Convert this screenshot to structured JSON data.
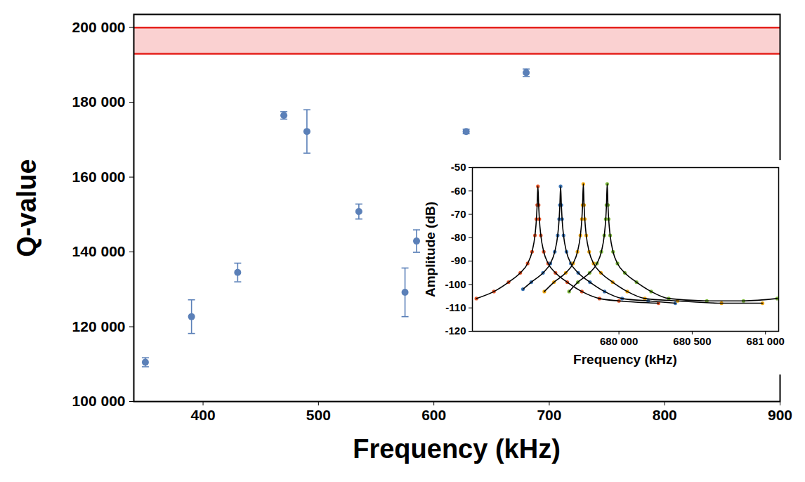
{
  "chart_data": [
    {
      "type": "scatter",
      "x_label": "Frequency (kHz)",
      "y_label": "Q-value",
      "xlim": [
        340,
        900
      ],
      "ylim": [
        100000,
        203500
      ],
      "xticks": [
        400,
        500,
        600,
        700,
        800,
        900
      ],
      "yticks": [
        {
          "value": 100000,
          "label": "100 000"
        },
        {
          "value": 120000,
          "label": "120 000"
        },
        {
          "value": 140000,
          "label": "140 000"
        },
        {
          "value": 160000,
          "label": "160 000"
        },
        {
          "value": 180000,
          "label": "180 000"
        },
        {
          "value": 200000,
          "label": "200 000"
        }
      ],
      "x": [
        350,
        390,
        430,
        470,
        490,
        535,
        575,
        585,
        628,
        680
      ],
      "values": [
        110500,
        122700,
        134500,
        176500,
        172200,
        150800,
        129200,
        142900,
        172200,
        187900
      ],
      "errors": [
        1200,
        4500,
        2500,
        1000,
        5800,
        2000,
        6500,
        3000,
        600,
        1000
      ],
      "reference_band": [
        193000,
        200000
      ],
      "color": "#5b80b8",
      "marker": "circle",
      "grid": false
    },
    {
      "type": "line",
      "x_label": "Frequency (kHz)",
      "y_label": "Amplitude (dB)",
      "xlim": [
        679000,
        681090
      ],
      "ylim": [
        -120,
        -50
      ],
      "xticks": [
        {
          "value": 680000,
          "label": "680 000"
        },
        {
          "value": 680500,
          "label": "680 500"
        },
        {
          "value": 681000,
          "label": "681 000"
        }
      ],
      "yticks": [
        -120,
        -110,
        -100,
        -90,
        -80,
        -70,
        -60,
        -50
      ],
      "grid": false,
      "series": [
        {
          "color": "#e8572a",
          "x": [
            679027,
            679147,
            679247,
            679327,
            679377,
            679407,
            679427,
            679437,
            679442,
            679447,
            679452,
            679457,
            679467,
            679487,
            679517,
            679567,
            679647,
            679747,
            679867,
            680000,
            680270
          ],
          "values": [
            -106,
            -103,
            -99,
            -95,
            -91,
            -86,
            -79,
            -72,
            -66,
            -58,
            -66,
            -72,
            -79,
            -86,
            -91,
            -95,
            -99,
            -103,
            -106,
            -107,
            -108
          ]
        },
        {
          "color": "#3f78b8",
          "x": [
            679345,
            679402,
            679482,
            679532,
            679562,
            679582,
            679592,
            679597,
            679602,
            679607,
            679612,
            679622,
            679642,
            679672,
            679722,
            679802,
            679902,
            680022,
            680200,
            680385
          ],
          "values": [
            -102,
            -99,
            -95,
            -91,
            -86,
            -79,
            -72,
            -66,
            -58,
            -66,
            -72,
            -79,
            -86,
            -91,
            -95,
            -99,
            -103,
            -106,
            -107,
            -108
          ]
        },
        {
          "color": "#f0a814",
          "x": [
            679491,
            679557,
            679637,
            679687,
            679717,
            679737,
            679747,
            679752,
            679757,
            679762,
            679767,
            679777,
            679797,
            679827,
            679877,
            679957,
            680057,
            680177,
            680400,
            680700,
            680980
          ],
          "values": [
            -103,
            -99,
            -95,
            -91,
            -86,
            -79,
            -72,
            -66,
            -57,
            -66,
            -72,
            -79,
            -86,
            -91,
            -95,
            -99,
            -103,
            -106,
            -107,
            -108,
            -108
          ]
        },
        {
          "color": "#7cb83a",
          "x": [
            679660,
            679720,
            679800,
            679850,
            679880,
            679900,
            679910,
            679915,
            679920,
            679925,
            679930,
            679940,
            679960,
            679990,
            680040,
            680120,
            680220,
            680340,
            680600,
            680850,
            681080
          ],
          "values": [
            -103,
            -99,
            -95,
            -91,
            -86,
            -79,
            -72,
            -66,
            -57,
            -66,
            -72,
            -79,
            -86,
            -91,
            -95,
            -99,
            -103,
            -106,
            -107,
            -107,
            -106
          ]
        }
      ]
    }
  ]
}
